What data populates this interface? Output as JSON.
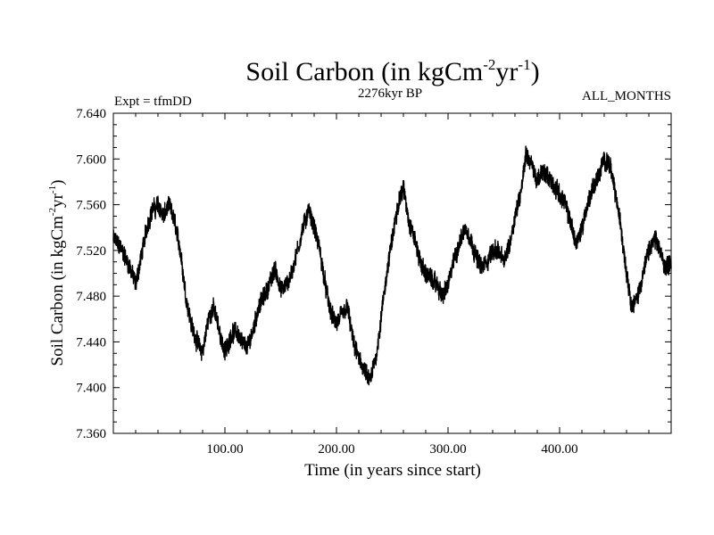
{
  "chart_data": {
    "type": "line",
    "title": "Soil Carbon (in kgCm",
    "title_sup1": "-2",
    "title_mid": "yr",
    "title_sup2": "-1",
    "title_close": ")",
    "left_label": "Expt = tfmDD",
    "center_label": "2276kyr BP",
    "right_label": "ALL_MONTHS",
    "xlabel": "Time (in years since start)",
    "ylabel": "Soil Carbon (in kgCm",
    "ylabel_sup1": "-2",
    "ylabel_mid": "yr",
    "ylabel_sup2": "-1",
    "ylabel_close": ")",
    "xlim": [
      0,
      500
    ],
    "ylim": [
      7.36,
      7.64
    ],
    "xticks": [
      100,
      200,
      300,
      400
    ],
    "xtick_labels": [
      "100.00",
      "200.00",
      "300.00",
      "400.00"
    ],
    "yticks": [
      7.36,
      7.4,
      7.44,
      7.48,
      7.52,
      7.56,
      7.6,
      7.64
    ],
    "ytick_labels": [
      "7.360",
      "7.400",
      "7.440",
      "7.480",
      "7.520",
      "7.560",
      "7.600",
      "7.640"
    ],
    "line_color": "#000000",
    "noise_amplitude": 0.009,
    "series": [
      {
        "name": "Soil Carbon",
        "x": [
          0,
          5,
          10,
          15,
          20,
          25,
          30,
          35,
          40,
          45,
          50,
          55,
          60,
          65,
          70,
          75,
          80,
          85,
          90,
          95,
          100,
          105,
          110,
          115,
          120,
          125,
          130,
          135,
          140,
          145,
          150,
          155,
          160,
          165,
          170,
          175,
          180,
          185,
          190,
          195,
          200,
          205,
          210,
          215,
          220,
          225,
          230,
          235,
          240,
          245,
          250,
          255,
          260,
          265,
          270,
          275,
          280,
          285,
          290,
          295,
          300,
          305,
          310,
          315,
          320,
          325,
          330,
          335,
          340,
          345,
          350,
          355,
          360,
          365,
          370,
          375,
          380,
          385,
          390,
          395,
          400,
          405,
          410,
          415,
          420,
          425,
          430,
          435,
          440,
          445,
          450,
          455,
          460,
          465,
          470,
          475,
          480,
          485,
          490,
          495,
          500
        ],
        "values": [
          7.53,
          7.525,
          7.515,
          7.505,
          7.49,
          7.515,
          7.54,
          7.555,
          7.56,
          7.55,
          7.56,
          7.545,
          7.52,
          7.48,
          7.455,
          7.44,
          7.43,
          7.46,
          7.47,
          7.45,
          7.43,
          7.445,
          7.45,
          7.44,
          7.435,
          7.45,
          7.47,
          7.48,
          7.49,
          7.505,
          7.485,
          7.49,
          7.5,
          7.52,
          7.54,
          7.555,
          7.54,
          7.52,
          7.49,
          7.465,
          7.455,
          7.465,
          7.47,
          7.44,
          7.425,
          7.415,
          7.405,
          7.425,
          7.46,
          7.5,
          7.53,
          7.56,
          7.575,
          7.545,
          7.53,
          7.51,
          7.5,
          7.495,
          7.49,
          7.48,
          7.49,
          7.51,
          7.525,
          7.54,
          7.53,
          7.515,
          7.505,
          7.51,
          7.52,
          7.52,
          7.51,
          7.525,
          7.55,
          7.57,
          7.605,
          7.595,
          7.58,
          7.59,
          7.585,
          7.575,
          7.57,
          7.56,
          7.545,
          7.525,
          7.54,
          7.56,
          7.575,
          7.585,
          7.6,
          7.595,
          7.57,
          7.54,
          7.5,
          7.47,
          7.48,
          7.5,
          7.52,
          7.53,
          7.52,
          7.505,
          7.51
        ]
      }
    ]
  }
}
